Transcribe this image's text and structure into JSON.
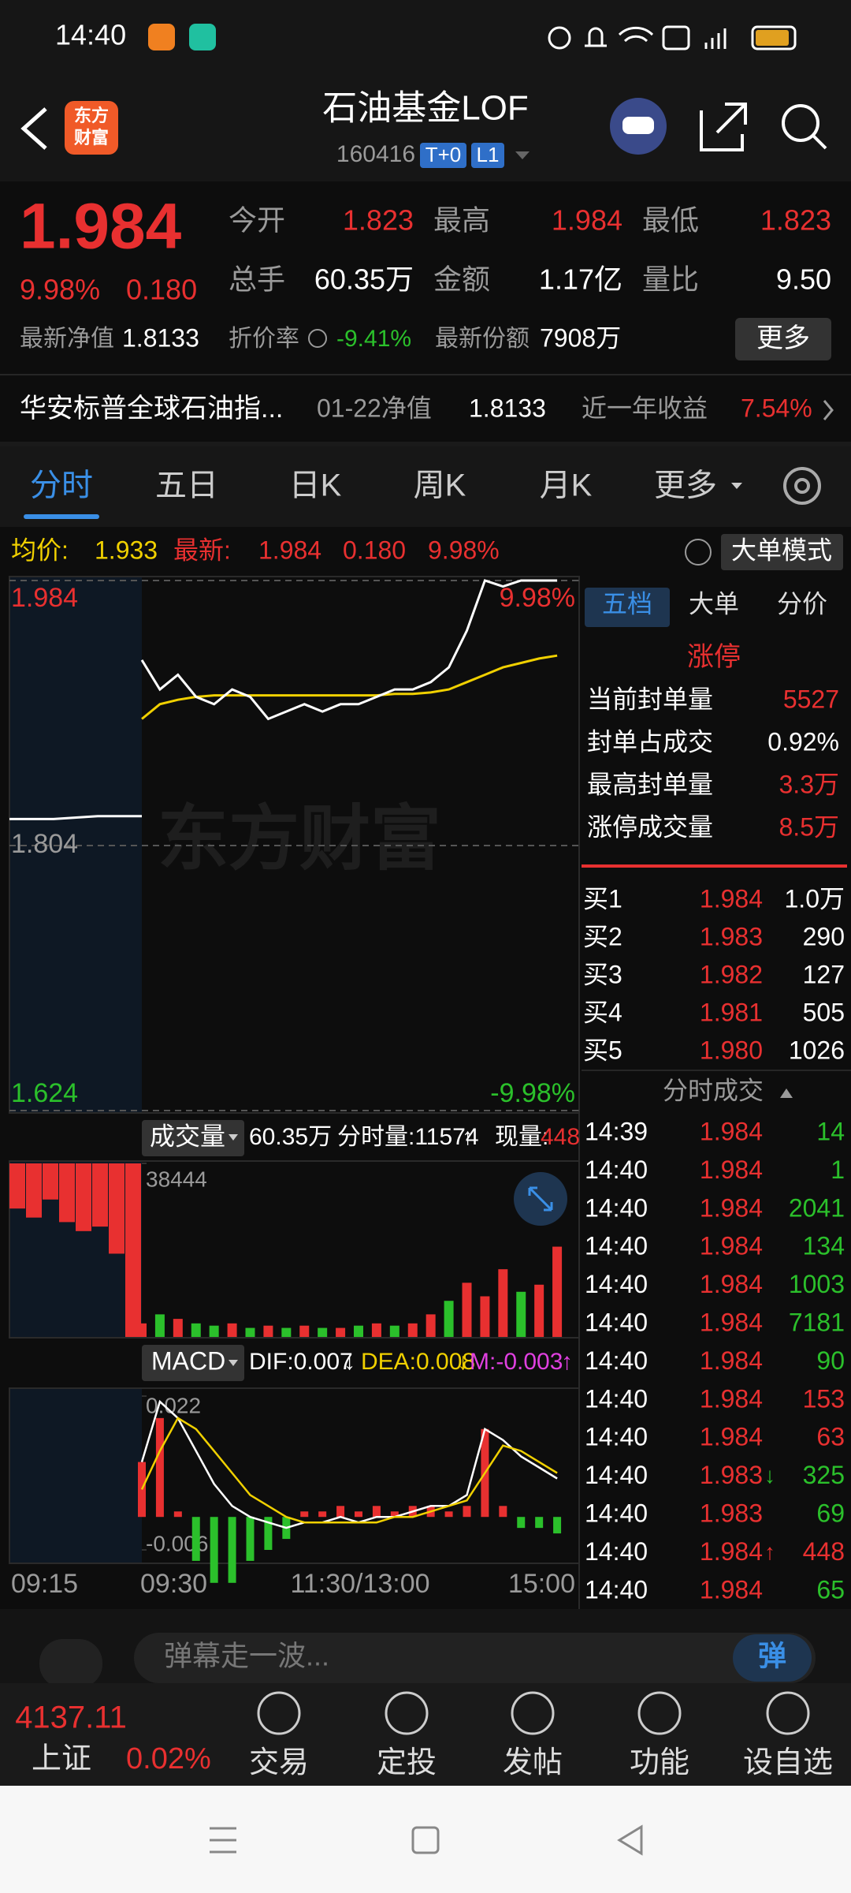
{
  "status_bar": {
    "time": "14:40"
  },
  "header": {
    "logo": [
      "东方",
      "财富"
    ],
    "title": "石油基金LOF",
    "code": "160416",
    "badges": [
      "T+0",
      "L1"
    ]
  },
  "quote": {
    "price": "1.984",
    "change_pct": "9.98%",
    "change": "0.180",
    "stats": [
      {
        "label": "今开",
        "value": "1.823"
      },
      {
        "label": "最高",
        "value": "1.984"
      },
      {
        "label": "最低",
        "value": "1.823"
      },
      {
        "label": "总手",
        "value": "60.35万"
      },
      {
        "label": "金额",
        "value": "1.17亿"
      },
      {
        "label": "量比",
        "value": "9.50"
      }
    ],
    "nav_label": "最新净值",
    "nav": "1.8133",
    "discount_label": "折价率",
    "discount": "-9.41%",
    "shares_label": "最新份额",
    "shares": "7908万",
    "more": "更多"
  },
  "fund": {
    "name": "华安标普全球石油指...",
    "nav_date_label": "01-22净值",
    "nav": "1.8133",
    "return_label": "近一年收益",
    "return": "7.54%"
  },
  "tabs": [
    "分时",
    "五日",
    "日K",
    "周K",
    "月K",
    "更多"
  ],
  "info_bar": {
    "avg_label": "均价:",
    "avg": "1.933",
    "last_label": "最新:",
    "last": "1.984",
    "change": "0.180",
    "change_pct": "9.98%",
    "mode": "大单模式"
  },
  "chart": {
    "type": "line",
    "watermark": "东方财富",
    "ylim": [
      1.624,
      1.984
    ],
    "yticks": [
      1.624,
      1.804,
      1.984
    ],
    "y2lim": [
      -9.98,
      9.98
    ],
    "y2ticks": [
      {
        "value": -9.98,
        "label": "-9.98%"
      },
      {
        "value": 9.98,
        "label": "9.98%"
      }
    ],
    "x_labels": [
      "09:15",
      "09:30",
      "11:30/13:00",
      "15:00"
    ],
    "pre_market_price": [
      1.822,
      1.822,
      1.824,
      1.824
    ],
    "price": [
      1.93,
      1.91,
      1.92,
      1.905,
      1.9,
      1.91,
      1.905,
      1.89,
      1.895,
      1.9,
      1.895,
      1.9,
      1.9,
      1.905,
      1.91,
      1.91,
      1.915,
      1.925,
      1.95,
      1.984,
      1.98,
      1.984,
      1.984,
      1.984
    ],
    "avg": [
      1.89,
      1.9,
      1.903,
      1.905,
      1.906,
      1.906,
      1.906,
      1.906,
      1.906,
      1.906,
      1.906,
      1.906,
      1.906,
      1.906,
      1.907,
      1.907,
      1.908,
      1.91,
      1.915,
      1.92,
      1.925,
      1.928,
      1.931,
      1.933
    ]
  },
  "volume": {
    "label": "成交量",
    "total": "60.35万",
    "minute_label": "分时量:11574",
    "minute_arrow": "↑",
    "current_label": "现量:",
    "current": "448",
    "ylim": [
      0,
      38444
    ],
    "yticks": [
      38444
    ],
    "pre_market_values": [
      10000,
      12000,
      8000,
      13000,
      15000,
      14000,
      20000,
      38444
    ],
    "values": [
      3000,
      5000,
      4000,
      3000,
      2500,
      3000,
      2000,
      2500,
      2000,
      2500,
      2000,
      2000,
      2500,
      3000,
      2500,
      3000,
      5000,
      8000,
      12000,
      9000,
      15000,
      10000,
      11574,
      20000
    ],
    "colors": [
      "#e83030",
      "#2bc02b",
      "#e83030",
      "#2bc02b",
      "#2bc02b",
      "#e83030",
      "#2bc02b",
      "#e83030",
      "#2bc02b",
      "#e83030",
      "#2bc02b",
      "#e83030",
      "#2bc02b",
      "#e83030",
      "#2bc02b",
      "#e83030",
      "#e83030",
      "#2bc02b",
      "#e83030",
      "#e83030",
      "#e83030",
      "#2bc02b",
      "#e83030",
      "#e83030"
    ]
  },
  "macd": {
    "label": "MACD",
    "dif_label": "DIF:0.007",
    "dif_arrow": "↓",
    "dea_label": "DEA:0.008",
    "dea_arrow": "↓",
    "m_label": "M:-0.003",
    "m_arrow": "↑",
    "ylim": [
      -0.006,
      0.022
    ],
    "yticks": [
      -0.006,
      0.022
    ],
    "dif": [
      0.01,
      0.021,
      0.018,
      0.012,
      0.006,
      0.002,
      0.0,
      -0.001,
      -0.002,
      -0.001,
      -0.001,
      0.0,
      -0.001,
      0.0,
      0.0,
      0.001,
      0.002,
      0.002,
      0.004,
      0.016,
      0.014,
      0.011,
      0.009,
      0.007
    ],
    "dea": [
      0.005,
      0.012,
      0.018,
      0.016,
      0.012,
      0.008,
      0.004,
      0.002,
      0.0,
      -0.001,
      -0.001,
      -0.001,
      -0.001,
      -0.001,
      0.0,
      0.0,
      0.001,
      0.002,
      0.003,
      0.008,
      0.013,
      0.012,
      0.01,
      0.008
    ],
    "m": [
      0.01,
      0.018,
      0.001,
      -0.008,
      -0.012,
      -0.012,
      -0.008,
      -0.006,
      -0.004,
      0.001,
      0.001,
      0.002,
      0.001,
      0.002,
      0.001,
      0.002,
      0.002,
      0.001,
      0.002,
      0.016,
      0.002,
      -0.002,
      -0.002,
      -0.003
    ]
  },
  "right_panel": {
    "tabs": [
      "五档",
      "大单",
      "分价"
    ],
    "limit_label": "涨停",
    "stats": [
      {
        "label": "当前封单量",
        "value": "5527",
        "color": "#e83030"
      },
      {
        "label": "封单占成交",
        "value": "0.92%",
        "color": "#ffffff"
      },
      {
        "label": "最高封单量",
        "value": "3.3万",
        "color": "#e83030"
      },
      {
        "label": "涨停成交量",
        "value": "8.5万",
        "color": "#e83030"
      }
    ],
    "bids": [
      {
        "label": "买1",
        "price": "1.984",
        "volume": "1.0万"
      },
      {
        "label": "买2",
        "price": "1.983",
        "volume": "290"
      },
      {
        "label": "买3",
        "price": "1.982",
        "volume": "127"
      },
      {
        "label": "买4",
        "price": "1.981",
        "volume": "505"
      },
      {
        "label": "买5",
        "price": "1.980",
        "volume": "1026"
      }
    ],
    "trades_title": "分时成交",
    "trades": [
      {
        "time": "14:39",
        "price": "1.984",
        "volume": "14",
        "color": "#2bc02b"
      },
      {
        "time": "14:40",
        "price": "1.984",
        "volume": "1",
        "color": "#2bc02b"
      },
      {
        "time": "14:40",
        "price": "1.984",
        "volume": "2041",
        "color": "#2bc02b"
      },
      {
        "time": "14:40",
        "price": "1.984",
        "volume": "134",
        "color": "#2bc02b"
      },
      {
        "time": "14:40",
        "price": "1.984",
        "volume": "1003",
        "color": "#2bc02b"
      },
      {
        "time": "14:40",
        "price": "1.984",
        "volume": "7181",
        "color": "#2bc02b"
      },
      {
        "time": "14:40",
        "price": "1.984",
        "volume": "90",
        "color": "#2bc02b"
      },
      {
        "time": "14:40",
        "price": "1.984",
        "volume": "153",
        "color": "#e83030"
      },
      {
        "time": "14:40",
        "price": "1.984",
        "volume": "63",
        "color": "#e83030"
      },
      {
        "time": "14:40",
        "price": "1.983",
        "arrow": "↓",
        "volume": "325",
        "color": "#2bc02b"
      },
      {
        "time": "14:40",
        "price": "1.983",
        "volume": "69",
        "color": "#2bc02b"
      },
      {
        "time": "14:40",
        "price": "1.984",
        "arrow": "↑",
        "volume": "448",
        "color": "#e83030"
      },
      {
        "time": "14:40",
        "price": "1.984",
        "volume": "65",
        "color": "#2bc02b"
      }
    ]
  },
  "comment_bar": {
    "placeholder": "弹幕走一波...",
    "button": "弹"
  },
  "bottom_nav": {
    "index_value": "4137.11",
    "index_name": "上证",
    "index_change": "0.02%",
    "items": [
      "交易",
      "定投",
      "发帖",
      "功能",
      "设自选"
    ]
  }
}
